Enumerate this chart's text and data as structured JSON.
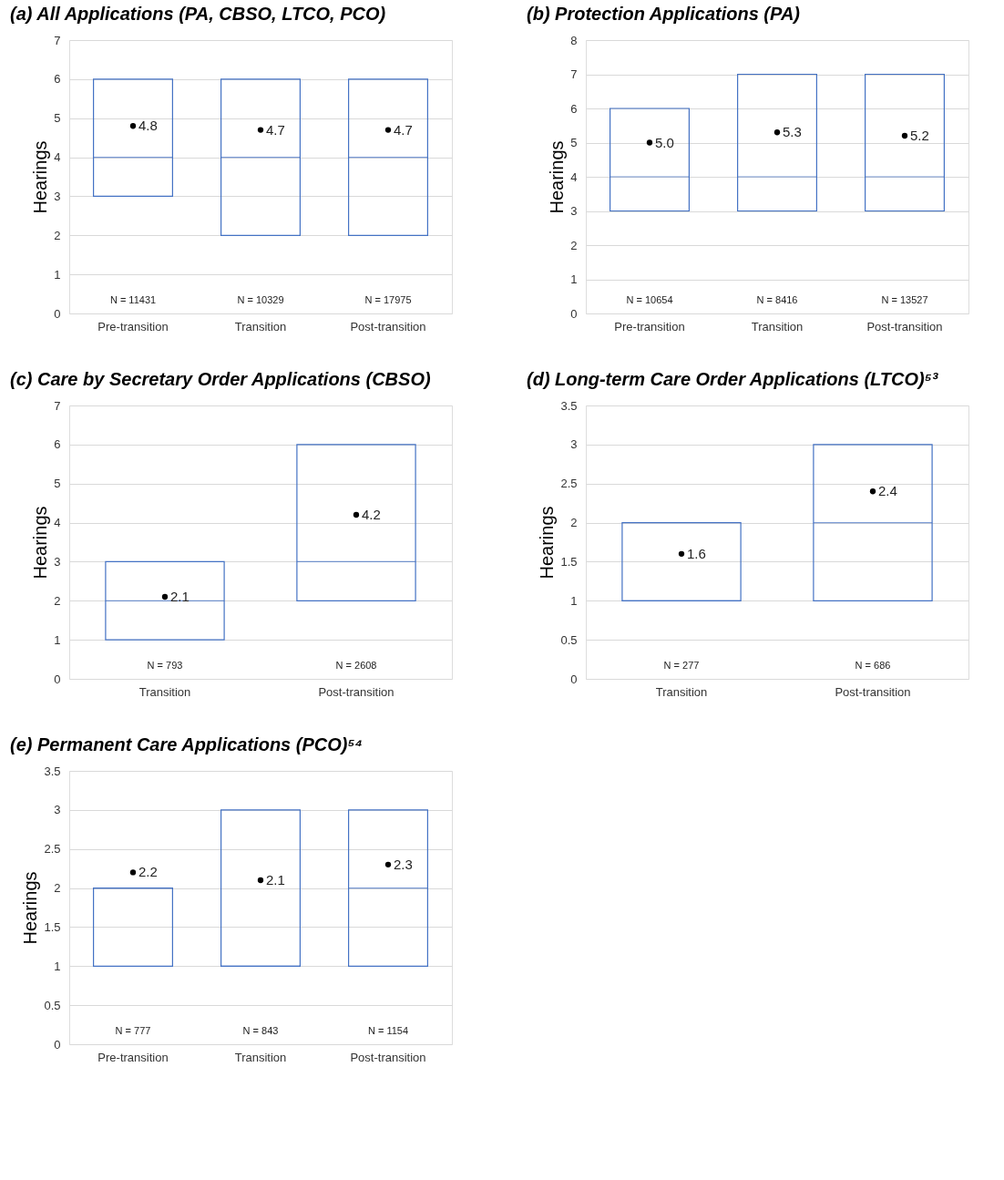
{
  "chart_data": [
    {
      "type": "box",
      "title": "(a) All Applications (PA, CBSO, LTCO, PCO)",
      "ylabel": "Hearings",
      "categories": [
        "Pre-transition",
        "Transition",
        "Post-transition"
      ],
      "color": "#4472c4",
      "ylim": [
        0,
        7
      ],
      "yticks": [
        0,
        1,
        2,
        3,
        4,
        5,
        6,
        7
      ],
      "grid": "y",
      "marker": "circle",
      "boxes": [
        {
          "low": 3,
          "q1": 3,
          "median": 4,
          "q3": 6,
          "high": 6,
          "mean": 4.8
        },
        {
          "low": 2,
          "q1": 2,
          "median": 4,
          "q3": 6,
          "high": 6,
          "mean": 4.7
        },
        {
          "low": 2,
          "q1": 2,
          "median": 4,
          "q3": 6,
          "high": 6,
          "mean": 4.7
        }
      ],
      "annotations": [
        "4.8",
        "4.7",
        "4.7",
        "N = 11431",
        "N = 10329",
        "N = 17975"
      ]
    },
    {
      "type": "box",
      "title": "(b) Protection Applications (PA)",
      "ylabel": "Hearings",
      "categories": [
        "Pre-transition",
        "Transition",
        "Post-transition"
      ],
      "color": "#4472c4",
      "ylim": [
        0,
        8
      ],
      "yticks": [
        0,
        1,
        2,
        3,
        4,
        5,
        6,
        7,
        8
      ],
      "grid": "y",
      "marker": "circle",
      "boxes": [
        {
          "low": 3,
          "q1": 3,
          "median": 4,
          "q3": 6,
          "high": 6,
          "mean": 5.0
        },
        {
          "low": 3,
          "q1": 3,
          "median": 4,
          "q3": 7,
          "high": 7,
          "mean": 5.3
        },
        {
          "low": 3,
          "q1": 3,
          "median": 4,
          "q3": 7,
          "high": 7,
          "mean": 5.2
        }
      ],
      "annotations": [
        "5.0",
        "5.3",
        "5.2",
        "N = 10654",
        "N = 8416",
        "N = 13527"
      ]
    },
    {
      "type": "box",
      "title": "(c) Care by Secretary Order Applications (CBSO)",
      "ylabel": "Hearings",
      "categories": [
        "Transition",
        "Post-transition"
      ],
      "color": "#4472c4",
      "ylim": [
        0,
        7
      ],
      "yticks": [
        0,
        1,
        2,
        3,
        4,
        5,
        6,
        7
      ],
      "grid": "y",
      "marker": "circle",
      "boxes": [
        {
          "low": 1,
          "q1": 1,
          "median": 2,
          "q3": 3,
          "high": 3,
          "mean": 2.1
        },
        {
          "low": 2,
          "q1": 2,
          "median": 3,
          "q3": 6,
          "high": 6,
          "mean": 4.2
        }
      ],
      "annotations": [
        "2.1",
        "4.2",
        "N = 793",
        "N = 2608"
      ]
    },
    {
      "type": "box",
      "title": "(d) Long-term Care Order Applications (LTCO)⁵³",
      "ylabel": "Hearings",
      "categories": [
        "Transition",
        "Post-transition"
      ],
      "color": "#4472c4",
      "ylim": [
        0,
        3.5
      ],
      "yticks": [
        0,
        0.5,
        1,
        1.5,
        2,
        2.5,
        3,
        3.5
      ],
      "grid": "y",
      "marker": "circle",
      "boxes": [
        {
          "low": 1,
          "q1": 1,
          "median": 1,
          "q3": 2,
          "high": 2,
          "mean": 1.6
        },
        {
          "low": 1,
          "q1": 1,
          "median": 2,
          "q3": 3,
          "high": 3,
          "mean": 2.4
        }
      ],
      "annotations": [
        "1.6",
        "2.4",
        "N = 277",
        "N = 686"
      ]
    },
    {
      "type": "box",
      "title": "(e) Permanent Care Applications (PCO)⁵⁴",
      "ylabel": "Hearings",
      "categories": [
        "Pre-transition",
        "Transition",
        "Post-transition"
      ],
      "color": "#4472c4",
      "ylim": [
        0,
        3.5
      ],
      "yticks": [
        0,
        0.5,
        1,
        1.5,
        2,
        2.5,
        3,
        3.5
      ],
      "grid": "y",
      "marker": "circle",
      "boxes": [
        {
          "low": 1,
          "q1": 1,
          "median": 2,
          "q3": 2,
          "high": 2,
          "mean": 2.2
        },
        {
          "low": 1,
          "q1": 1,
          "median": 1,
          "q3": 3,
          "high": 3,
          "mean": 2.1
        },
        {
          "low": 1,
          "q1": 1,
          "median": 2,
          "q3": 3,
          "high": 3,
          "mean": 2.3
        }
      ],
      "annotations": [
        "2.2",
        "2.1",
        "2.3",
        "N = 777",
        "N = 843",
        "N = 1154"
      ]
    }
  ]
}
